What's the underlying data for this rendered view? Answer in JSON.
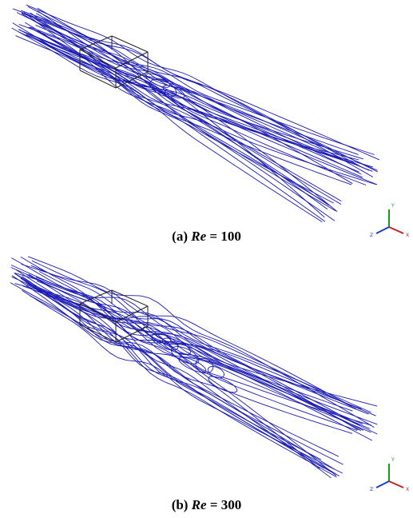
{
  "panels": [
    {
      "caption": {
        "label": "(a)",
        "variable": "Re",
        "relation": "=",
        "value": "100"
      },
      "axes": {
        "y": "Y",
        "z": "Z",
        "x": "X"
      }
    },
    {
      "caption": {
        "label": "(b)",
        "variable": "Re",
        "relation": "=",
        "value": "300"
      },
      "axes": {
        "y": "Y",
        "z": "Z",
        "x": "X"
      }
    }
  ]
}
